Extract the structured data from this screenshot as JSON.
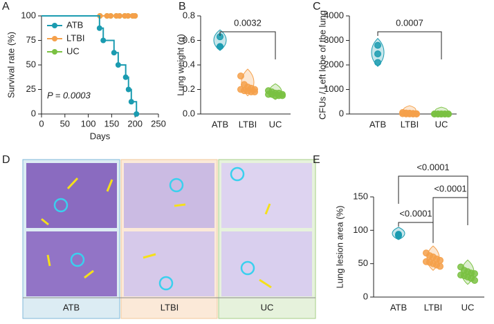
{
  "chart_data": [
    {
      "type": "survival",
      "panel": "A",
      "y_label": "Survival rate (%)",
      "x_label": "Days",
      "annotation": "P = 0.0003",
      "xlim": [
        0,
        250
      ],
      "xticks": [
        0,
        50,
        100,
        150,
        200,
        250
      ],
      "ylim": [
        0,
        100
      ],
      "yticks": [
        0,
        25,
        50,
        75,
        100
      ],
      "legend": "upper left",
      "series": [
        {
          "name": "UC",
          "color": "#7ac142",
          "x": [
            0,
            125,
            140,
            148,
            160,
            167,
            178,
            185,
            195,
            200
          ],
          "values": [
            100,
            100,
            100,
            100,
            100,
            100,
            100,
            100,
            100,
            100
          ]
        },
        {
          "name": "LTBI",
          "color": "#f5a04a",
          "x": [
            0,
            125,
            140,
            148,
            160,
            167,
            178,
            185,
            195,
            200
          ],
          "values": [
            100,
            100,
            100,
            100,
            100,
            100,
            100,
            100,
            100,
            100
          ]
        },
        {
          "name": "ATB",
          "color": "#1a9bb0",
          "x": [
            0,
            124,
            132,
            155,
            164,
            180,
            186,
            192,
            203
          ],
          "values": [
            100,
            87.5,
            75,
            62.5,
            50,
            37.5,
            25,
            12.5,
            0
          ]
        }
      ]
    },
    {
      "type": "violin",
      "panel": "B",
      "y_label": "Lung weight (g)",
      "categories": [
        "ATB",
        "LTBI",
        "UC"
      ],
      "ylim": [
        0,
        0.8
      ],
      "yticks": [
        {
          "value": 0,
          "label": "0.0"
        },
        0.2,
        0.4,
        0.6,
        0.8
      ],
      "series": [
        {
          "name": "ATB",
          "color": "#1a9bb0",
          "values": [
            0.63,
            0.55,
            0.55
          ]
        },
        {
          "name": "LTBI",
          "color": "#f5a04a",
          "values": [
            0.31,
            0.24,
            0.22,
            0.21,
            0.2,
            0.2,
            0.19,
            0.19,
            0.18,
            0.18
          ]
        },
        {
          "name": "UC",
          "color": "#7ac142",
          "values": [
            0.19,
            0.18,
            0.17,
            0.17,
            0.16,
            0.16,
            0.16,
            0.15,
            0.15,
            0.15
          ]
        }
      ],
      "comparisons": [
        {
          "between": [
            "ATB",
            "UC"
          ],
          "label": "0.0032"
        }
      ]
    },
    {
      "type": "violin",
      "panel": "C",
      "y_label": "CFUs / Left lobe of the lung",
      "categories": [
        "ATB",
        "LTBI",
        "UC"
      ],
      "ylim": [
        0,
        4000
      ],
      "yticks": [
        0,
        1000,
        2000,
        3000,
        4000
      ],
      "series": [
        {
          "name": "ATB",
          "color": "#1a9bb0",
          "values": [
            2800,
            2450,
            2100
          ]
        },
        {
          "name": "LTBI",
          "color": "#f5a04a",
          "values": [
            60,
            40,
            30,
            20,
            10,
            10,
            5,
            5,
            0,
            0
          ]
        },
        {
          "name": "UC",
          "color": "#7ac142",
          "values": [
            0,
            0,
            0,
            0,
            0,
            0,
            0,
            0,
            0,
            0
          ]
        }
      ],
      "comparisons": [
        {
          "between": [
            "ATB",
            "UC"
          ],
          "label": "0.0007"
        }
      ]
    },
    {
      "type": "violin",
      "panel": "E",
      "y_label": "Lung lesion area (%)",
      "categories": [
        "ATB",
        "LTBI",
        "UC"
      ],
      "ylim": [
        0,
        150
      ],
      "yticks": [
        0,
        50,
        100,
        150
      ],
      "series": [
        {
          "name": "ATB",
          "color": "#1a9bb0",
          "values": [
            94,
            93,
            92
          ]
        },
        {
          "name": "LTBI",
          "color": "#f5a04a",
          "values": [
            66,
            62,
            60,
            57,
            55,
            53,
            52,
            50,
            48,
            46
          ]
        },
        {
          "name": "UC",
          "color": "#7ac142",
          "values": [
            45,
            40,
            38,
            36,
            35,
            33,
            32,
            30,
            28,
            25
          ]
        }
      ],
      "comparisons": [
        {
          "between": [
            "ATB",
            "LTBI"
          ],
          "label": "<0.0001"
        },
        {
          "between": [
            "LTBI",
            "UC"
          ],
          "label": "<0.0001"
        },
        {
          "between": [
            "ATB",
            "UC"
          ],
          "label": "<0.0001"
        }
      ]
    }
  ],
  "panel_d": {
    "panel": "D",
    "groups": [
      "ATB",
      "LTBI",
      "UC"
    ]
  }
}
